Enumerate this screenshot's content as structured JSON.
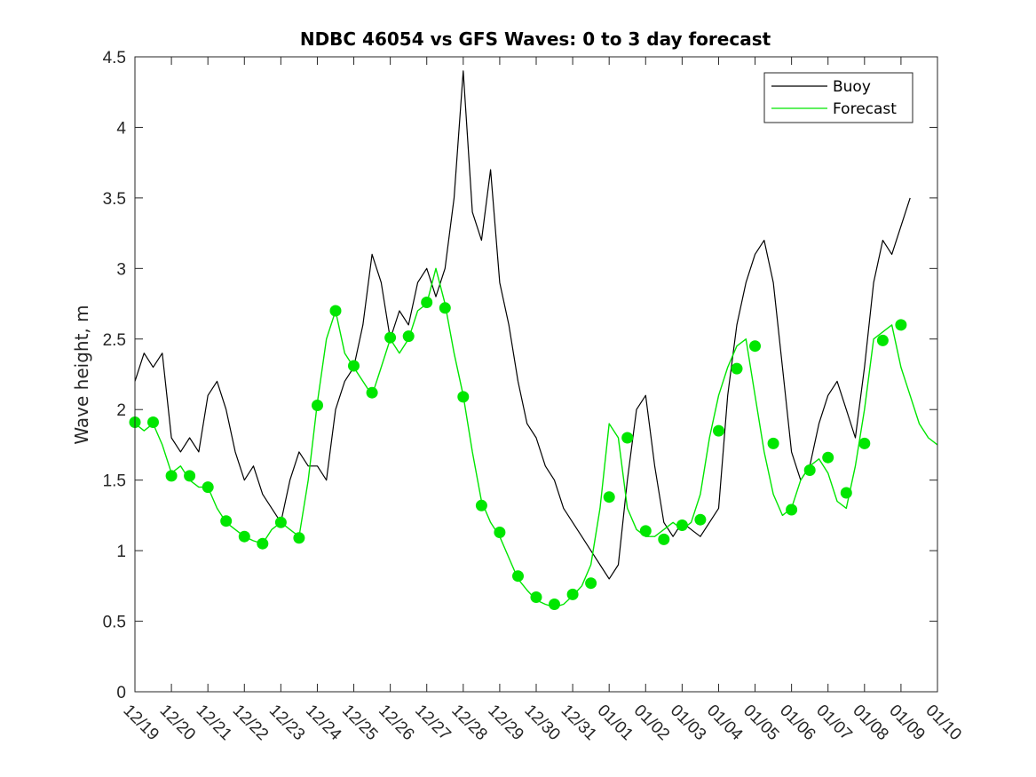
{
  "chart_data": {
    "type": "line",
    "title": "NDBC 46054 vs GFS Waves: 0 to 3 day forecast",
    "xlabel": "",
    "ylabel": "Wave height, m",
    "ylim": [
      0,
      4.5
    ],
    "xlim": [
      0,
      22
    ],
    "y_ticks": [
      "0",
      "0.5",
      "1",
      "1.5",
      "2",
      "2.5",
      "3",
      "3.5",
      "4",
      "4.5"
    ],
    "x_tick_labels": [
      "12/19",
      "12/20",
      "12/21",
      "12/22",
      "12/23",
      "12/24",
      "12/25",
      "12/26",
      "12/27",
      "12/28",
      "12/29",
      "12/30",
      "12/31",
      "01/01",
      "01/02",
      "01/03",
      "01/04",
      "01/05",
      "01/06",
      "01/07",
      "01/08",
      "01/09",
      "01/10"
    ],
    "legend": {
      "position": "top-right",
      "entries": [
        "Buoy",
        "Forecast"
      ]
    },
    "colors": {
      "buoy": "#000000",
      "forecast": "#00e600",
      "marker": "#00e600"
    },
    "series": [
      {
        "name": "Buoy",
        "x": [
          0,
          0.25,
          0.5,
          0.75,
          1,
          1.25,
          1.5,
          1.75,
          2,
          2.25,
          2.5,
          2.75,
          3,
          3.25,
          3.5,
          3.75,
          4,
          4.25,
          4.5,
          4.75,
          5,
          5.25,
          5.5,
          5.75,
          6,
          6.25,
          6.5,
          6.75,
          7,
          7.25,
          7.5,
          7.75,
          8,
          8.25,
          8.5,
          8.75,
          9,
          9.25,
          9.5,
          9.75,
          10,
          10.25,
          10.5,
          10.75,
          11,
          11.25,
          11.5,
          11.75,
          12,
          12.25,
          12.5,
          12.75,
          13,
          13.25,
          13.5,
          13.75,
          14,
          14.25,
          14.5,
          14.75,
          15,
          15.25,
          15.5,
          15.75,
          16,
          16.25,
          16.5,
          16.75,
          17,
          17.25,
          17.5,
          17.75,
          18,
          18.25,
          18.5,
          18.75,
          19,
          19.25,
          19.5,
          19.75,
          20,
          20.25,
          20.5,
          20.75,
          21,
          21.25
        ],
        "values": [
          2.2,
          2.4,
          2.3,
          2.4,
          1.8,
          1.7,
          1.8,
          1.7,
          2.1,
          2.2,
          2.0,
          1.7,
          1.5,
          1.6,
          1.4,
          1.3,
          1.2,
          1.5,
          1.7,
          1.6,
          1.6,
          1.5,
          2.0,
          2.2,
          2.3,
          2.6,
          3.1,
          2.9,
          2.5,
          2.7,
          2.6,
          2.9,
          3.0,
          2.8,
          3.0,
          3.5,
          4.4,
          3.4,
          3.2,
          3.7,
          2.9,
          2.6,
          2.2,
          1.9,
          1.8,
          1.6,
          1.5,
          1.3,
          1.2,
          1.1,
          1.0,
          0.9,
          0.8,
          0.9,
          1.5,
          2.0,
          2.1,
          1.6,
          1.2,
          1.1,
          1.2,
          1.15,
          1.1,
          1.2,
          1.3,
          2.1,
          2.6,
          2.9,
          3.1,
          3.2,
          2.9,
          2.3,
          1.7,
          1.5,
          1.6,
          1.9,
          2.1,
          2.2,
          2.0,
          1.8,
          2.3,
          2.9,
          3.2,
          3.1,
          3.3,
          3.5
        ]
      },
      {
        "name": "Forecast",
        "x": [
          0,
          0.25,
          0.5,
          0.75,
          1,
          1.25,
          1.5,
          1.75,
          2,
          2.25,
          2.5,
          2.75,
          3,
          3.25,
          3.5,
          3.75,
          4,
          4.25,
          4.5,
          4.75,
          5,
          5.25,
          5.5,
          5.75,
          6,
          6.25,
          6.5,
          6.75,
          7,
          7.25,
          7.5,
          7.75,
          8,
          8.25,
          8.5,
          8.75,
          9,
          9.25,
          9.5,
          9.75,
          10,
          10.25,
          10.5,
          10.75,
          11,
          11.25,
          11.5,
          11.75,
          12,
          12.25,
          12.5,
          12.75,
          13,
          13.25,
          13.5,
          13.75,
          14,
          14.25,
          14.5,
          14.75,
          15,
          15.25,
          15.5,
          15.75,
          16,
          16.25,
          16.5,
          16.75,
          17,
          17.25,
          17.5,
          17.75,
          18,
          18.25,
          18.5,
          18.75,
          19,
          19.25,
          19.5,
          19.75,
          20,
          20.25,
          20.5,
          20.75,
          21,
          21.25,
          21.5,
          21.75,
          22
        ],
        "values": [
          1.9,
          1.85,
          1.9,
          1.75,
          1.55,
          1.6,
          1.5,
          1.45,
          1.45,
          1.3,
          1.2,
          1.15,
          1.1,
          1.07,
          1.05,
          1.15,
          1.2,
          1.15,
          1.1,
          1.5,
          2.05,
          2.5,
          2.7,
          2.4,
          2.3,
          2.2,
          2.1,
          2.3,
          2.5,
          2.4,
          2.5,
          2.7,
          2.75,
          3.0,
          2.75,
          2.4,
          2.1,
          1.7,
          1.35,
          1.2,
          1.1,
          0.95,
          0.8,
          0.72,
          0.65,
          0.62,
          0.6,
          0.62,
          0.68,
          0.75,
          0.9,
          1.3,
          1.9,
          1.8,
          1.3,
          1.15,
          1.1,
          1.1,
          1.15,
          1.2,
          1.15,
          1.2,
          1.4,
          1.8,
          2.1,
          2.3,
          2.45,
          2.5,
          2.1,
          1.7,
          1.4,
          1.25,
          1.3,
          1.5,
          1.6,
          1.65,
          1.55,
          1.35,
          1.3,
          1.6,
          2.0,
          2.5,
          2.55,
          2.6,
          2.3,
          2.1,
          1.9,
          1.8,
          1.75
        ]
      },
      {
        "name": "Forecast markers",
        "x": [
          0,
          0.5,
          1,
          1.5,
          2,
          2.5,
          3,
          3.5,
          4,
          4.5,
          5,
          5.5,
          6,
          6.5,
          7,
          7.5,
          8,
          8.5,
          9,
          9.5,
          10,
          10.5,
          11,
          11.5,
          12,
          12.5,
          13,
          13.5,
          14,
          14.5,
          15,
          15.5,
          16,
          16.5,
          17,
          17.5,
          18,
          18.5,
          19,
          19.5,
          20,
          20.5,
          21
        ],
        "values": [
          1.91,
          1.91,
          1.53,
          1.53,
          1.45,
          1.21,
          1.1,
          1.05,
          1.2,
          1.09,
          2.03,
          2.7,
          2.31,
          2.12,
          2.51,
          2.52,
          2.76,
          2.72,
          2.09,
          1.32,
          1.13,
          0.82,
          0.67,
          0.62,
          0.69,
          0.77,
          1.38,
          1.8,
          1.14,
          1.08,
          1.18,
          1.22,
          1.85,
          2.29,
          2.45,
          1.76,
          1.29,
          1.57,
          1.66,
          1.41,
          1.76,
          2.49,
          2.6
        ]
      }
    ]
  }
}
